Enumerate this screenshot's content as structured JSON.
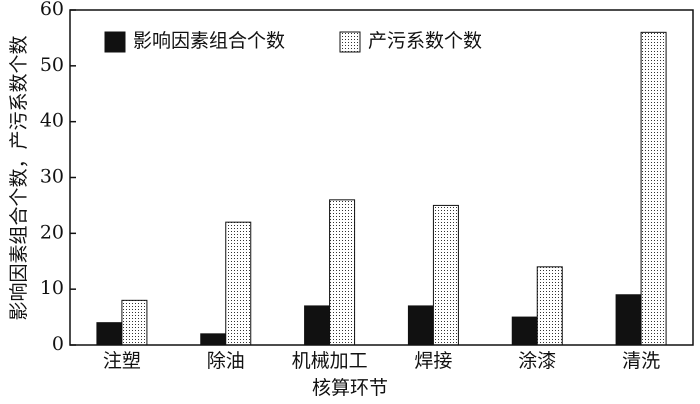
{
  "chart_data": {
    "type": "bar",
    "x_label": "核算环节",
    "y_label": "影响因素组合个数，产污系数个数",
    "categories": [
      "注塑",
      "除油",
      "机械加工",
      "焊接",
      "涂漆",
      "清洗"
    ],
    "series": [
      {
        "name": "影响因素组合个数",
        "color": "#111111",
        "fill_style": "solid",
        "values": [
          4,
          2,
          7,
          7,
          5,
          9
        ]
      },
      {
        "name": "产污系数个数",
        "color": "#111111",
        "fill_style": "dots",
        "values": [
          8,
          22,
          26,
          25,
          14,
          56
        ]
      }
    ],
    "ylim": [
      0,
      60
    ],
    "yticks": [
      0,
      10,
      20,
      30,
      40,
      50,
      60
    ],
    "legend": "top-left"
  }
}
